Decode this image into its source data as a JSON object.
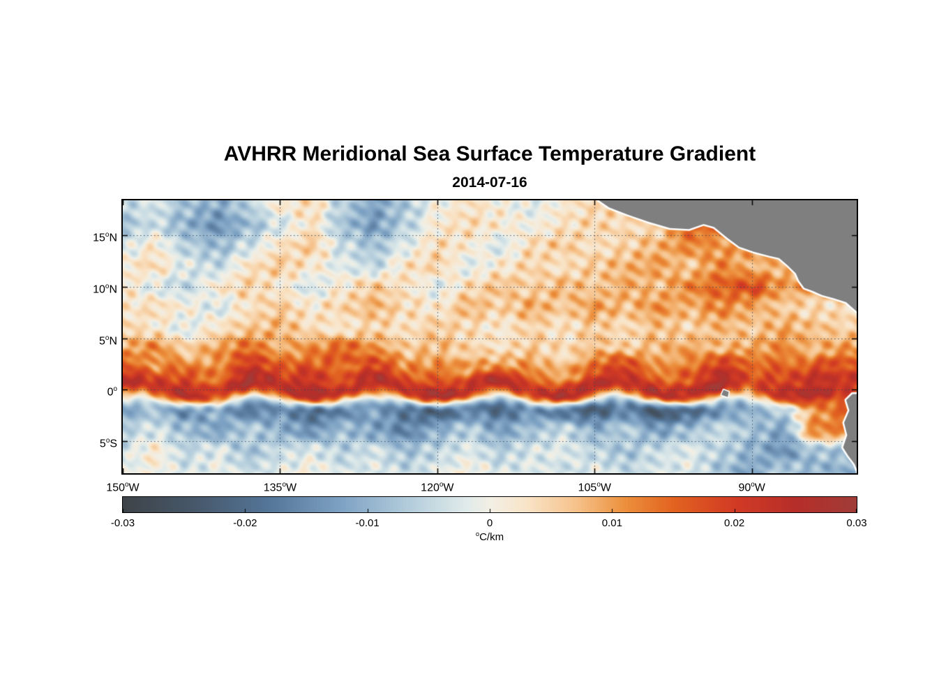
{
  "chart_data": {
    "type": "heatmap",
    "title": "AVHRR Meridional Sea Surface Temperature Gradient",
    "subtitle": "2014-07-16",
    "units": "°C/km",
    "colorbar_label": {
      "sup": "o",
      "text": "C/km"
    },
    "xlim": [
      -150,
      -80
    ],
    "ylim": [
      -8.1,
      18.4
    ],
    "grid": {
      "show": true,
      "style": "dotted",
      "color": "#2d4664"
    },
    "land_color": "#7f7f7f",
    "coast_halo_color": "#ffffff",
    "xticks": [
      {
        "value": -150,
        "pre": "150",
        "sup": "o",
        "post": "W"
      },
      {
        "value": -135,
        "pre": "135",
        "sup": "o",
        "post": "W"
      },
      {
        "value": -120,
        "pre": "120",
        "sup": "o",
        "post": "W"
      },
      {
        "value": -105,
        "pre": "105",
        "sup": "o",
        "post": "W"
      },
      {
        "value": -90,
        "pre": "90",
        "sup": "o",
        "post": "W"
      }
    ],
    "yticks": [
      {
        "value": 15,
        "pre": "15",
        "sup": "o",
        "post": "N"
      },
      {
        "value": 10,
        "pre": "10",
        "sup": "o",
        "post": "N"
      },
      {
        "value": 5,
        "pre": "5",
        "sup": "o",
        "post": "N"
      },
      {
        "value": 0,
        "pre": "0",
        "sup": "o",
        "post": ""
      },
      {
        "value": -5,
        "pre": "5",
        "sup": "o",
        "post": "S"
      }
    ],
    "colorbar_range": [
      -0.03,
      0.03
    ],
    "colorbar_ticks": [
      {
        "value": -0.03,
        "label": "-0.03"
      },
      {
        "value": -0.02,
        "label": "-0.02"
      },
      {
        "value": -0.01,
        "label": "-0.01"
      },
      {
        "value": 0,
        "label": "0"
      },
      {
        "value": 0.01,
        "label": "0.01"
      },
      {
        "value": 0.02,
        "label": "0.02"
      },
      {
        "value": 0.03,
        "label": "0.03"
      }
    ],
    "colormap": [
      {
        "value": -0.03,
        "color": "#3d4348"
      },
      {
        "value": -0.024,
        "color": "#47586b"
      },
      {
        "value": -0.018,
        "color": "#547699"
      },
      {
        "value": -0.012,
        "color": "#7fa3c4"
      },
      {
        "value": -0.006,
        "color": "#b9d1de"
      },
      {
        "value": -0.002,
        "color": "#dfeaea"
      },
      {
        "value": 0.0,
        "color": "#f2efe5"
      },
      {
        "value": 0.003,
        "color": "#f9e4c8"
      },
      {
        "value": 0.007,
        "color": "#f6c38c"
      },
      {
        "value": 0.011,
        "color": "#ec903d"
      },
      {
        "value": 0.015,
        "color": "#e26320"
      },
      {
        "value": 0.02,
        "color": "#d23b24"
      },
      {
        "value": 0.025,
        "color": "#b62e29"
      },
      {
        "value": 0.03,
        "color": "#a03c38"
      }
    ],
    "lon": [
      -150,
      -147,
      -144,
      -141,
      -138,
      -135,
      -132,
      -129,
      -126,
      -123,
      -120,
      -117,
      -114,
      -111,
      -108,
      -105,
      -102,
      -99,
      -96,
      -93,
      -90,
      -87,
      -84,
      -81
    ],
    "lat": [
      18,
      16,
      14,
      12,
      10,
      8,
      6,
      4,
      2,
      0,
      -2,
      -4,
      -6,
      -8
    ],
    "values": [
      [
        -0.005,
        -0.003,
        -0.008,
        -0.011,
        -0.006,
        0.002,
        0.004,
        -0.006,
        -0.012,
        -0.007,
        0,
        0.003,
        0.001,
        -0.002,
        0.002,
        0.004,
        null,
        null,
        null,
        null,
        null,
        null,
        null,
        null
      ],
      [
        -0.008,
        -0.004,
        -0.01,
        -0.014,
        -0.009,
        -0.003,
        0.003,
        -0.008,
        -0.013,
        -0.006,
        0.002,
        0.004,
        0.002,
        0,
        0.003,
        0.005,
        0.004,
        null,
        0.015,
        null,
        null,
        null,
        null,
        null
      ],
      [
        -0.003,
        0.002,
        -0.006,
        -0.009,
        -0.004,
        0.003,
        0.006,
        -0.004,
        -0.008,
        -0.002,
        0.004,
        0.002,
        -0.003,
        0.004,
        0.006,
        0.003,
        0.005,
        0.008,
        0.012,
        0.01,
        null,
        null,
        null,
        null
      ],
      [
        0.002,
        0.004,
        -0.002,
        -0.005,
        0.003,
        0.006,
        0.002,
        -0.002,
        -0.005,
        0.003,
        0.005,
        -0.002,
        0.002,
        0.005,
        0.003,
        0.006,
        0.008,
        0.01,
        0.006,
        0.012,
        0.008,
        null,
        null,
        null
      ],
      [
        0.003,
        -0.002,
        -0.005,
        0.002,
        0.005,
        0.002,
        -0.003,
        0.002,
        0.006,
        0.003,
        -0.002,
        0.004,
        0.007,
        0.005,
        0.008,
        0.006,
        0.009,
        0.007,
        0.012,
        0.015,
        0.018,
        0.01,
        null,
        null
      ],
      [
        0.002,
        0.004,
        0.001,
        -0.003,
        0.003,
        0.006,
        0.002,
        0.005,
        0.008,
        0.004,
        0.002,
        0.008,
        0.005,
        0.009,
        0.006,
        0.01,
        0.007,
        0.011,
        0.008,
        0.012,
        0.009,
        0.006,
        0.004,
        null
      ],
      [
        0.005,
        0.002,
        -0.002,
        0.003,
        0.006,
        0.008,
        0.004,
        0.002,
        0.005,
        0.003,
        0.006,
        0.004,
        0.002,
        0.005,
        0.003,
        0.006,
        0.004,
        0.007,
        0.005,
        0.008,
        0.006,
        0.009,
        0.007,
        0.005
      ],
      [
        0.008,
        0.012,
        0.006,
        0.01,
        0.014,
        0.008,
        0.012,
        0.016,
        0.01,
        0.006,
        0.008,
        0.005,
        0.003,
        0.006,
        0.004,
        0.007,
        0.005,
        0.008,
        0.01,
        0.007,
        0.009,
        0.012,
        0.008,
        0.01
      ],
      [
        0.015,
        0.01,
        0.018,
        0.012,
        0.02,
        0.016,
        0.022,
        0.014,
        0.018,
        0.012,
        0.016,
        0.01,
        0.008,
        0.012,
        0.01,
        0.014,
        0.018,
        0.012,
        0.016,
        0.02,
        0.014,
        0.018,
        0.022,
        0.016
      ],
      [
        0.025,
        0.022,
        0.026,
        0.02,
        0.028,
        0.024,
        0.027,
        0.022,
        0.026,
        0.023,
        0.028,
        0.024,
        0.026,
        0.022,
        0.027,
        0.025,
        0.023,
        0.026,
        0.024,
        0.028,
        0.018,
        0.024,
        0.026,
        0.022
      ],
      [
        -0.012,
        -0.008,
        -0.015,
        -0.01,
        -0.018,
        -0.014,
        -0.02,
        -0.016,
        -0.012,
        -0.018,
        -0.022,
        -0.016,
        -0.02,
        -0.014,
        -0.018,
        -0.022,
        -0.016,
        -0.024,
        -0.02,
        -0.014,
        -0.01,
        -0.006,
        0.01,
        0.015
      ],
      [
        -0.006,
        -0.003,
        -0.008,
        -0.012,
        -0.006,
        -0.01,
        -0.014,
        -0.008,
        -0.012,
        -0.016,
        -0.01,
        -0.006,
        -0.012,
        -0.008,
        -0.004,
        -0.01,
        -0.006,
        -0.012,
        -0.008,
        -0.004,
        -0.008,
        -0.012,
        0.012,
        null
      ],
      [
        -0.003,
        0.002,
        -0.005,
        -0.002,
        -0.008,
        -0.004,
        -0.002,
        -0.006,
        -0.003,
        -0.008,
        -0.005,
        -0.002,
        -0.006,
        -0.003,
        -0.002,
        -0.005,
        -0.008,
        -0.004,
        -0.002,
        -0.006,
        -0.01,
        -0.014,
        -0.008,
        null
      ],
      [
        -0.002,
        0.001,
        -0.003,
        -0.001,
        -0.004,
        -0.002,
        0.001,
        -0.003,
        -0.002,
        -0.005,
        -0.002,
        0.001,
        -0.003,
        -0.002,
        -0.004,
        -0.002,
        -0.005,
        -0.003,
        -0.002,
        -0.008,
        -0.012,
        -0.006,
        -0.01,
        null
      ]
    ],
    "land_polygons": [
      {
        "name": "central-america",
        "points": [
          [
            -104.6,
            18.4
          ],
          [
            -103.6,
            17.7
          ],
          [
            -101.8,
            17.0
          ],
          [
            -99.8,
            16.3
          ],
          [
            -97.8,
            15.7
          ],
          [
            -96.0,
            15.6
          ],
          [
            -94.6,
            16.1
          ],
          [
            -93.6,
            15.8
          ],
          [
            -92.4,
            14.8
          ],
          [
            -91.2,
            13.9
          ],
          [
            -89.8,
            13.4
          ],
          [
            -88.3,
            13.0
          ],
          [
            -87.4,
            12.8
          ],
          [
            -86.6,
            12.1
          ],
          [
            -85.8,
            11.3
          ],
          [
            -85.5,
            10.6
          ],
          [
            -85.0,
            9.9
          ],
          [
            -84.2,
            9.6
          ],
          [
            -83.3,
            9.2
          ],
          [
            -82.2,
            8.9
          ],
          [
            -81.0,
            8.5
          ],
          [
            -80.0,
            7.6
          ],
          [
            -78.0,
            7.2
          ],
          [
            -78.0,
            19.0
          ],
          [
            -105.0,
            19.0
          ]
        ]
      },
      {
        "name": "south-america",
        "points": [
          [
            -80.4,
            -0.4
          ],
          [
            -81.0,
            -1.0
          ],
          [
            -80.7,
            -2.0
          ],
          [
            -81.2,
            -3.2
          ],
          [
            -80.9,
            -4.4
          ],
          [
            -81.3,
            -5.6
          ],
          [
            -80.8,
            -6.4
          ],
          [
            -80.2,
            -7.2
          ],
          [
            -79.8,
            -8.2
          ],
          [
            -78.0,
            -8.5
          ],
          [
            -78.0,
            -0.4
          ]
        ]
      },
      {
        "name": "galapagos-islands",
        "points": [
          [
            -92.7,
            0.0
          ],
          [
            -92.2,
            -0.2
          ],
          [
            -92.3,
            -0.7
          ],
          [
            -92.9,
            -0.5
          ]
        ]
      }
    ]
  }
}
